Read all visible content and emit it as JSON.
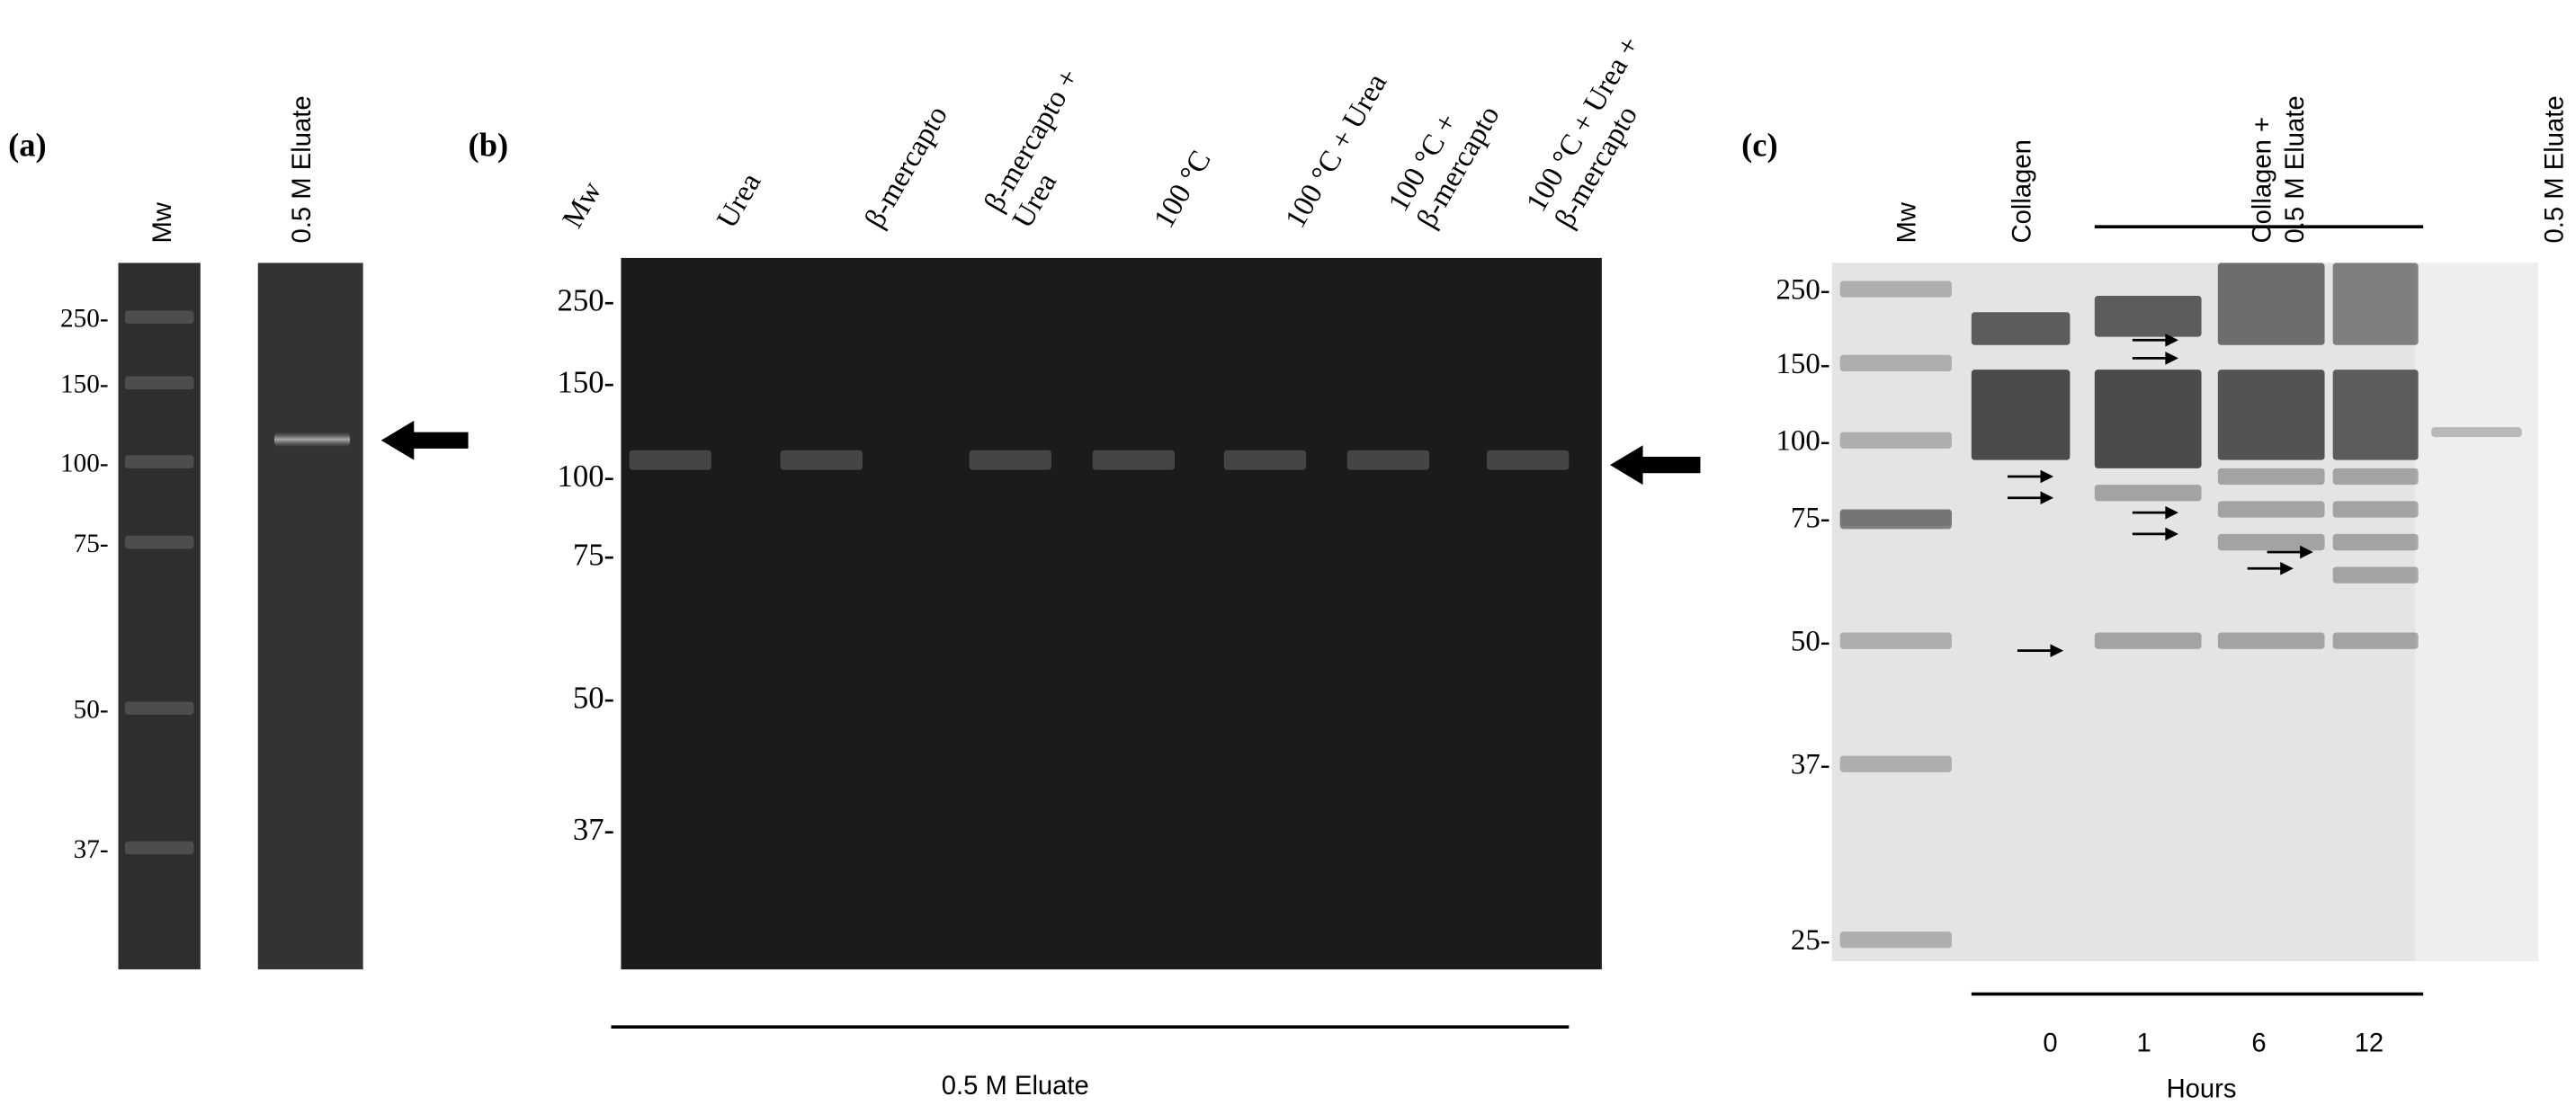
{
  "panel_a": {
    "label": "(a)",
    "lanes": [
      [
        "Mw"
      ],
      [
        "0.5 M Eluate"
      ]
    ],
    "markers": [
      "250-",
      "150-",
      "100-",
      "75-",
      "50-",
      "37-"
    ]
  },
  "panel_b": {
    "label": "(b)",
    "lanes": [
      [
        "Mw"
      ],
      [
        "Urea"
      ],
      [
        "β-mercapto"
      ],
      [
        "β-mercapto +",
        "Urea"
      ],
      [
        "100 °C"
      ],
      [
        "100 °C + Urea"
      ],
      [
        "100  °C +",
        "β-mercapto"
      ],
      [
        "100  °C + Urea +",
        "β-mercapto"
      ]
    ],
    "markers": [
      "250-",
      "150-",
      "100-",
      "75-",
      "50-",
      "37-"
    ],
    "footer": "0.5 M Eluate"
  },
  "panel_c": {
    "label": "(c)",
    "lanes": [
      [
        "Mw"
      ],
      [
        "Collagen"
      ],
      [
        "Collagen +",
        "0.5 M Eluate"
      ],
      [
        "0.5 M Eluate"
      ]
    ],
    "markers": [
      "250-",
      "150-",
      "100-",
      "75-",
      "50-",
      "37-",
      "25-"
    ],
    "hours": [
      "0",
      "1",
      "6",
      "12"
    ],
    "hours_label": "Hours"
  }
}
